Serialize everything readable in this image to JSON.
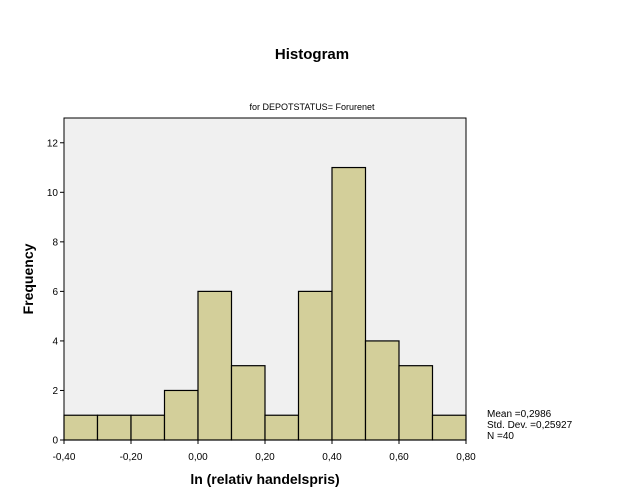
{
  "chart_data": {
    "type": "bar",
    "title": "Histogram",
    "subtitle": "for DEPOTSTATUS= Forurenet",
    "xlabel": "ln (relativ handelspris)",
    "ylabel": "Frequency",
    "bins": [
      {
        "start": -0.4,
        "end": -0.3,
        "value": 1
      },
      {
        "start": -0.3,
        "end": -0.2,
        "value": 1
      },
      {
        "start": -0.2,
        "end": -0.1,
        "value": 1
      },
      {
        "start": -0.1,
        "end": 0.0,
        "value": 2
      },
      {
        "start": 0.0,
        "end": 0.1,
        "value": 6
      },
      {
        "start": 0.1,
        "end": 0.2,
        "value": 3
      },
      {
        "start": 0.2,
        "end": 0.3,
        "value": 1
      },
      {
        "start": 0.3,
        "end": 0.4,
        "value": 6
      },
      {
        "start": 0.4,
        "end": 0.5,
        "value": 11
      },
      {
        "start": 0.5,
        "end": 0.6,
        "value": 4
      },
      {
        "start": 0.6,
        "end": 0.7,
        "value": 3
      },
      {
        "start": 0.7,
        "end": 0.8,
        "value": 1
      }
    ],
    "xlim": [
      -0.4,
      0.8
    ],
    "ylim": [
      0,
      13
    ],
    "x_ticks": [
      -0.4,
      -0.2,
      0.0,
      0.2,
      0.4,
      0.6,
      0.8
    ],
    "x_tick_labels": [
      "-0,40",
      "-0,20",
      "0,00",
      "0,20",
      "0,40",
      "0,60",
      "0,80"
    ],
    "y_ticks": [
      0,
      2,
      4,
      6,
      8,
      10,
      12
    ],
    "y_tick_labels": [
      "0",
      "2",
      "4",
      "6",
      "8",
      "10",
      "12"
    ],
    "grid": false,
    "stats": {
      "mean": "Mean =0,2986",
      "std_dev": "Std. Dev. =0,25927",
      "n": "N =40"
    },
    "colors": {
      "bar_fill": "#d3cf9a",
      "bar_stroke": "#000000",
      "plot_background": "#f0f0f0"
    }
  }
}
